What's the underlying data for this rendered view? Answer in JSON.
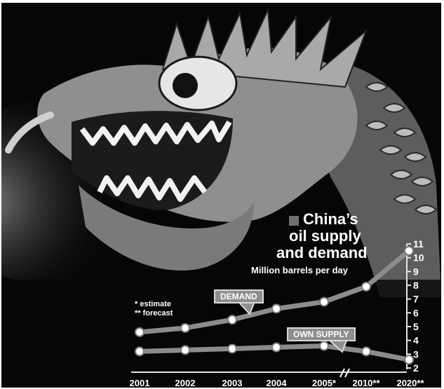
{
  "title": {
    "line1": "China’s",
    "line2": "oil supply",
    "line3": "and demand"
  },
  "unit_label": "Million barrels per day",
  "notes": {
    "estimate": "* estimate",
    "forecast": "** forecast"
  },
  "chart_data": {
    "type": "line",
    "categories": [
      "2001",
      "2002",
      "2003",
      "2004",
      "2005*",
      "2010**",
      "2020**"
    ],
    "y_ticks": [
      2,
      3,
      4,
      5,
      6,
      7,
      8,
      9,
      10,
      11
    ],
    "ylim": [
      2,
      11
    ],
    "y_axis_position": "right",
    "grid": false,
    "axis_break_between": [
      "2005*",
      "2010**"
    ],
    "series": [
      {
        "name": "DEMAND",
        "values": [
          4.6,
          4.9,
          5.5,
          6.3,
          6.8,
          7.9,
          10.5
        ]
      },
      {
        "name": "OWN SUPPLY",
        "values": [
          3.2,
          3.3,
          3.4,
          3.5,
          3.6,
          3.2,
          2.6
        ]
      }
    ],
    "colors": {
      "line": "#8c8c8c",
      "marker_fill": "#ffffff",
      "marker_stroke": "#7a7a7a",
      "axis": "#e6e6e6",
      "label_box": "#8e8e8e"
    }
  }
}
